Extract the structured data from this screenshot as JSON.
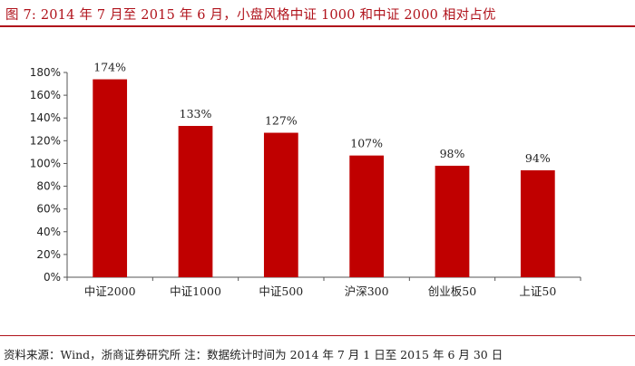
{
  "figure": {
    "title": "图 7:  2014 年 7 月至 2015 年 6 月，小盘风格中证 1000 和中证 2000 相对占优",
    "source": "资料来源：Wind，浙商证券研究所 注：数据统计时间为 2014 年 7 月 1 日至 2015 年 6 月 30 日"
  },
  "colors": {
    "bar": "#c00000",
    "accent": "#b0121b",
    "axis": "#555555"
  },
  "chart_data": {
    "type": "bar",
    "title": "",
    "xlabel": "",
    "ylabel": "",
    "categories": [
      "中证2000",
      "中证1000",
      "中证500",
      "沪深300",
      "创业板50",
      "上证50"
    ],
    "values": [
      174,
      133,
      127,
      107,
      98,
      94
    ],
    "value_unit": "%",
    "data_labels": [
      "174%",
      "133%",
      "127%",
      "107%",
      "98%",
      "94%"
    ],
    "ylim": [
      0,
      180
    ],
    "yticks": [
      0,
      20,
      40,
      60,
      80,
      100,
      120,
      140,
      160,
      180
    ],
    "ytick_labels": [
      "0%",
      "20%",
      "40%",
      "60%",
      "80%",
      "100%",
      "120%",
      "140%",
      "160%",
      "180%"
    ],
    "grid": false,
    "legend": "none"
  }
}
